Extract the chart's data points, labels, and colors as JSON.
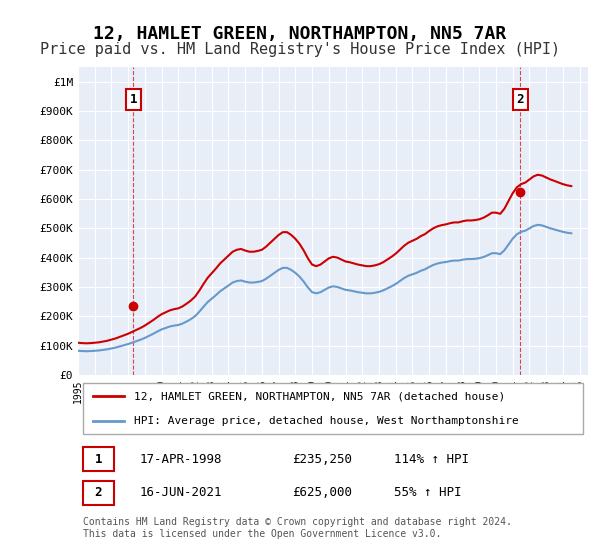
{
  "title": "12, HAMLET GREEN, NORTHAMPTON, NN5 7AR",
  "subtitle": "Price paid vs. HM Land Registry's House Price Index (HPI)",
  "title_fontsize": 13,
  "subtitle_fontsize": 11,
  "background_color": "#ffffff",
  "plot_bg_color": "#e8eef8",
  "grid_color": "#ffffff",
  "ylabel_color": "#000000",
  "ylim": [
    0,
    1050000
  ],
  "yticks": [
    0,
    100000,
    200000,
    300000,
    400000,
    500000,
    600000,
    700000,
    800000,
    900000,
    1000000
  ],
  "ytick_labels": [
    "£0",
    "£100K",
    "£200K",
    "£300K",
    "£400K",
    "£500K",
    "£600K",
    "£700K",
    "£800K",
    "£900K",
    "£1M"
  ],
  "xlim_start": 1995.0,
  "xlim_end": 2025.5,
  "purchase1_year": 1998.3,
  "purchase1_price": 235250,
  "purchase2_year": 2021.45,
  "purchase2_price": 625000,
  "sale_line_color": "#cc0000",
  "hpi_line_color": "#6699cc",
  "dashed_line_color": "#cc0000",
  "legend_label_sale": "12, HAMLET GREEN, NORTHAMPTON, NN5 7AR (detached house)",
  "legend_label_hpi": "HPI: Average price, detached house, West Northamptonshire",
  "annotation1_label": "1",
  "annotation2_label": "2",
  "table_row1": [
    "1",
    "17-APR-1998",
    "£235,250",
    "114% ↑ HPI"
  ],
  "table_row2": [
    "2",
    "16-JUN-2021",
    "£625,000",
    "55% ↑ HPI"
  ],
  "footer": "Contains HM Land Registry data © Crown copyright and database right 2024.\nThis data is licensed under the Open Government Licence v3.0.",
  "hpi_data": {
    "years": [
      1995.0,
      1995.25,
      1995.5,
      1995.75,
      1996.0,
      1996.25,
      1996.5,
      1996.75,
      1997.0,
      1997.25,
      1997.5,
      1997.75,
      1998.0,
      1998.25,
      1998.5,
      1998.75,
      1999.0,
      1999.25,
      1999.5,
      1999.75,
      2000.0,
      2000.25,
      2000.5,
      2000.75,
      2001.0,
      2001.25,
      2001.5,
      2001.75,
      2002.0,
      2002.25,
      2002.5,
      2002.75,
      2003.0,
      2003.25,
      2003.5,
      2003.75,
      2004.0,
      2004.25,
      2004.5,
      2004.75,
      2005.0,
      2005.25,
      2005.5,
      2005.75,
      2006.0,
      2006.25,
      2006.5,
      2006.75,
      2007.0,
      2007.25,
      2007.5,
      2007.75,
      2008.0,
      2008.25,
      2008.5,
      2008.75,
      2009.0,
      2009.25,
      2009.5,
      2009.75,
      2010.0,
      2010.25,
      2010.5,
      2010.75,
      2011.0,
      2011.25,
      2011.5,
      2011.75,
      2012.0,
      2012.25,
      2012.5,
      2012.75,
      2013.0,
      2013.25,
      2013.5,
      2013.75,
      2014.0,
      2014.25,
      2014.5,
      2014.75,
      2015.0,
      2015.25,
      2015.5,
      2015.75,
      2016.0,
      2016.25,
      2016.5,
      2016.75,
      2017.0,
      2017.25,
      2017.5,
      2017.75,
      2018.0,
      2018.25,
      2018.5,
      2018.75,
      2019.0,
      2019.25,
      2019.5,
      2019.75,
      2020.0,
      2020.25,
      2020.5,
      2020.75,
      2021.0,
      2021.25,
      2021.5,
      2021.75,
      2022.0,
      2022.25,
      2022.5,
      2022.75,
      2023.0,
      2023.25,
      2023.5,
      2023.75,
      2024.0,
      2024.25,
      2024.5
    ],
    "values": [
      82000,
      81000,
      80500,
      81000,
      82000,
      83000,
      85000,
      87000,
      90000,
      93000,
      97000,
      101000,
      105000,
      110000,
      115000,
      120000,
      126000,
      133000,
      140000,
      148000,
      155000,
      160000,
      165000,
      168000,
      170000,
      175000,
      182000,
      190000,
      200000,
      215000,
      232000,
      248000,
      260000,
      272000,
      285000,
      295000,
      305000,
      315000,
      320000,
      322000,
      318000,
      315000,
      315000,
      317000,
      320000,
      328000,
      338000,
      348000,
      358000,
      365000,
      365000,
      358000,
      348000,
      335000,
      318000,
      298000,
      282000,
      278000,
      282000,
      290000,
      298000,
      302000,
      300000,
      295000,
      290000,
      288000,
      285000,
      282000,
      280000,
      278000,
      278000,
      280000,
      283000,
      288000,
      295000,
      302000,
      310000,
      320000,
      330000,
      338000,
      343000,
      348000,
      355000,
      360000,
      368000,
      375000,
      380000,
      383000,
      385000,
      388000,
      390000,
      390000,
      393000,
      395000,
      395000,
      396000,
      398000,
      402000,
      408000,
      415000,
      415000,
      412000,
      425000,
      445000,
      465000,
      480000,
      488000,
      492000,
      500000,
      508000,
      512000,
      510000,
      505000,
      500000,
      496000,
      492000,
      488000,
      485000,
      483000
    ]
  },
  "hpi_scaled": {
    "years": [
      1995.0,
      1995.25,
      1995.5,
      1995.75,
      1996.0,
      1996.25,
      1996.5,
      1996.75,
      1997.0,
      1997.25,
      1997.5,
      1997.75,
      1998.0,
      1998.25,
      1998.5,
      1998.75,
      1999.0,
      1999.25,
      1999.5,
      1999.75,
      2000.0,
      2000.25,
      2000.5,
      2000.75,
      2001.0,
      2001.25,
      2001.5,
      2001.75,
      2002.0,
      2002.25,
      2002.5,
      2002.75,
      2003.0,
      2003.25,
      2003.5,
      2003.75,
      2004.0,
      2004.25,
      2004.5,
      2004.75,
      2005.0,
      2005.25,
      2005.5,
      2005.75,
      2006.0,
      2006.25,
      2006.5,
      2006.75,
      2007.0,
      2007.25,
      2007.5,
      2007.75,
      2008.0,
      2008.25,
      2008.5,
      2008.75,
      2009.0,
      2009.25,
      2009.5,
      2009.75,
      2010.0,
      2010.25,
      2010.5,
      2010.75,
      2011.0,
      2011.25,
      2011.5,
      2011.75,
      2012.0,
      2012.25,
      2012.5,
      2012.75,
      2013.0,
      2013.25,
      2013.5,
      2013.75,
      2014.0,
      2014.25,
      2014.5,
      2014.75,
      2015.0,
      2015.25,
      2015.5,
      2015.75,
      2016.0,
      2016.25,
      2016.5,
      2016.75,
      2017.0,
      2017.25,
      2017.5,
      2017.75,
      2018.0,
      2018.25,
      2018.5,
      2018.75,
      2019.0,
      2019.25,
      2019.5,
      2019.75,
      2020.0,
      2020.25,
      2020.5,
      2020.75,
      2021.0,
      2021.25,
      2021.5,
      2021.75,
      2022.0,
      2022.25,
      2022.5,
      2022.75,
      2023.0,
      2023.25,
      2023.5,
      2023.75,
      2024.0,
      2024.25,
      2024.5
    ],
    "values": [
      109500,
      108166,
      107500,
      108166,
      109500,
      110833,
      113500,
      116166,
      120166,
      124166,
      129500,
      134833,
      140166,
      146833,
      153500,
      160166,
      168166,
      177500,
      186833,
      197500,
      206833,
      213500,
      220166,
      224166,
      226833,
      233500,
      243000,
      253500,
      266833,
      286833,
      309500,
      330833,
      346833,
      362833,
      380166,
      393500,
      406833,
      420166,
      426833,
      429500,
      424166,
      420166,
      420166,
      422833,
      426833,
      437500,
      450833,
      464166,
      477500,
      486833,
      486833,
      477500,
      464166,
      446833,
      424166,
      397500,
      376166,
      370833,
      376166,
      386833,
      397500,
      402833,
      400166,
      393500,
      386833,
      384166,
      380166,
      376166,
      373500,
      370833,
      370833,
      373500,
      377500,
      384166,
      393500,
      402833,
      413500,
      426833,
      440166,
      450833,
      457500,
      464166,
      473500,
      480166,
      490833,
      500166,
      506833,
      510833,
      513500,
      517500,
      520166,
      520166,
      524166,
      526833,
      526833,
      528166,
      530833,
      536166,
      544166,
      553500,
      553500,
      549500,
      566833,
      593500,
      620166,
      640166,
      650833,
      656166,
      666833,
      677500,
      682833,
      680166,
      673500,
      666833,
      661666,
      656166,
      650833,
      646833,
      644166
    ]
  }
}
